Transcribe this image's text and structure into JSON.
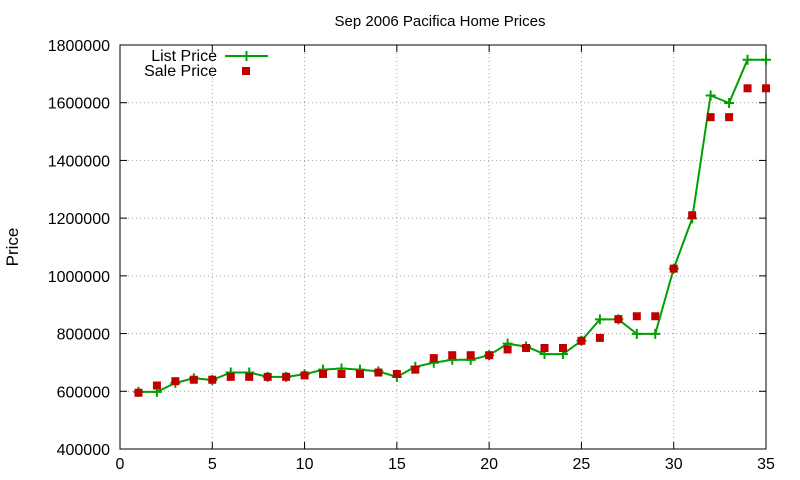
{
  "chart_data": {
    "type": "line",
    "title": "Sep 2006 Pacifica Home Prices",
    "xlabel": "",
    "ylabel": "Price",
    "xlim": [
      0,
      35
    ],
    "ylim": [
      400000,
      1800000
    ],
    "x_ticks": [
      0,
      5,
      10,
      15,
      20,
      25,
      30,
      35
    ],
    "y_ticks": [
      400000,
      600000,
      800000,
      1000000,
      1200000,
      1400000,
      1600000,
      1800000
    ],
    "x_tick_labels": [
      "0",
      "5",
      "10",
      "15",
      "20",
      "25",
      "30",
      "35"
    ],
    "y_tick_labels": [
      "400000",
      "600000",
      "800000",
      "1000000",
      "1200000",
      "1400000",
      "1600000",
      "1800000"
    ],
    "grid": true,
    "grid_style": "dotted",
    "legend_position": "top-left",
    "series": [
      {
        "name": "List Price",
        "style": "line-with-plus-markers",
        "color": "#00a000",
        "x": [
          1,
          2,
          3,
          4,
          5,
          6,
          7,
          8,
          9,
          10,
          11,
          12,
          13,
          14,
          15,
          16,
          17,
          18,
          19,
          20,
          21,
          22,
          23,
          24,
          25,
          26,
          27,
          28,
          29,
          30,
          31,
          32,
          33,
          34,
          35
        ],
        "y": [
          598000,
          598000,
          629000,
          645000,
          639000,
          665000,
          665000,
          650000,
          650000,
          659000,
          675000,
          679000,
          675000,
          669000,
          650000,
          685000,
          699000,
          709000,
          709000,
          725000,
          765000,
          755000,
          729000,
          729000,
          775000,
          849000,
          849000,
          799000,
          799000,
          1025000,
          1199000,
          1625000,
          1599000,
          1749000,
          1749000
        ]
      },
      {
        "name": "Sale Price",
        "style": "square-markers",
        "color": "#c00000",
        "x": [
          1,
          2,
          3,
          4,
          5,
          6,
          7,
          8,
          9,
          10,
          11,
          12,
          13,
          14,
          15,
          16,
          17,
          18,
          19,
          20,
          21,
          22,
          23,
          24,
          25,
          26,
          27,
          28,
          29,
          30,
          31,
          32,
          33,
          34,
          35
        ],
        "y": [
          595000,
          620000,
          635000,
          640000,
          640000,
          650000,
          650000,
          650000,
          650000,
          655000,
          660000,
          660000,
          660000,
          665000,
          660000,
          675000,
          715000,
          725000,
          725000,
          725000,
          745000,
          750000,
          750000,
          750000,
          775000,
          785000,
          850000,
          860000,
          860000,
          1025000,
          1210000,
          1550000,
          1550000,
          1650000,
          1650000
        ]
      }
    ]
  }
}
